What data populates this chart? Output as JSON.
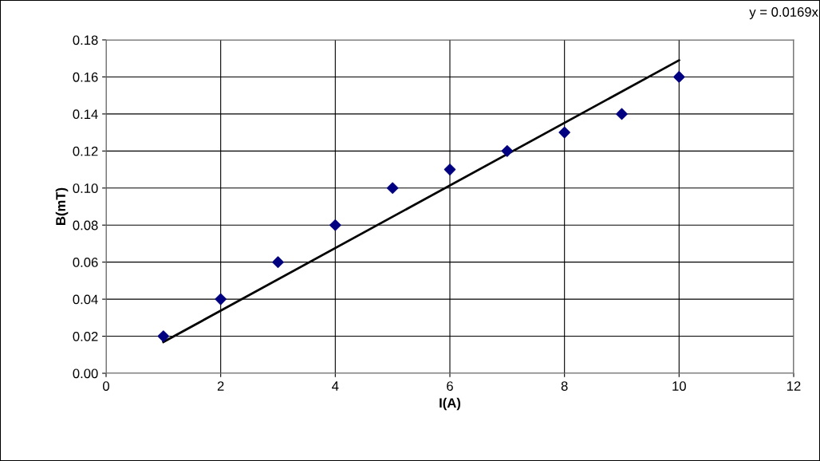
{
  "chart_data": {
    "type": "scatter",
    "xlabel": "I(A)",
    "ylabel": "B(mT)",
    "x": [
      1,
      2,
      3,
      4,
      5,
      6,
      7,
      8,
      9,
      10
    ],
    "series": [
      {
        "color": "#000080",
        "marker": "diamond",
        "values": [
          0.02,
          0.04,
          0.06,
          0.08,
          0.1,
          0.11,
          0.12,
          0.13,
          0.14,
          0.16
        ]
      },
      {
        "type": "line",
        "color": "#000000",
        "marker": "none",
        "line_style": "solid",
        "x": [
          1,
          10
        ],
        "values": [
          0.0169,
          0.169
        ]
      }
    ],
    "annotations": [
      "y = 0.0169x"
    ],
    "xlim": [
      0,
      12
    ],
    "xticks": [
      0,
      2,
      4,
      6,
      8,
      10,
      12
    ],
    "ylim": [
      0,
      0.18
    ],
    "yticks": [
      {
        "value": 0,
        "label": "0.00"
      },
      {
        "value": 0.02,
        "label": "0.02"
      },
      {
        "value": 0.04,
        "label": "0.04"
      },
      {
        "value": 0.06,
        "label": "0.06"
      },
      {
        "value": 0.08,
        "label": "0.08"
      },
      {
        "value": 0.1,
        "label": "0.10"
      },
      {
        "value": 0.12,
        "label": "0.12"
      },
      {
        "value": 0.14,
        "label": "0.14"
      },
      {
        "value": 0.16,
        "label": "0.16"
      },
      {
        "value": 0.18,
        "label": "0.18"
      }
    ],
    "grid": true,
    "legend": false
  }
}
